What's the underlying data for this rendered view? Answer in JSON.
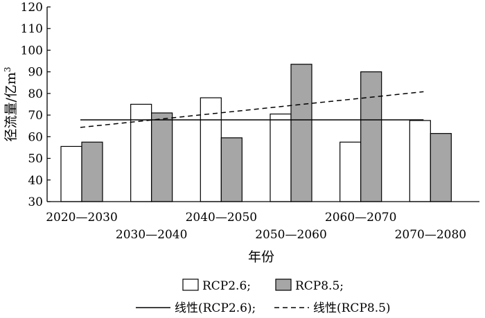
{
  "chart_data": {
    "type": "bar",
    "categories": [
      "2020—2030",
      "2030—2040",
      "2040—2050",
      "2050—2060",
      "2060—2070",
      "2070—2080"
    ],
    "series": [
      {
        "name": "RCP2.6",
        "values": [
          55.5,
          75,
          78,
          70.5,
          57.5,
          67.5
        ],
        "color": "#ffffff"
      },
      {
        "name": "RCP8.5",
        "values": [
          57.5,
          71,
          59.5,
          93.5,
          90,
          61.5
        ],
        "color": "#a6a6a6"
      }
    ],
    "trendlines": [
      {
        "name": "线性(RCP2.6)",
        "style": "solid",
        "start": 67.8,
        "end": 67.8
      },
      {
        "name": "线性(RCP8.5)",
        "style": "dashed",
        "start": 64.3,
        "end": 80.8
      }
    ],
    "ylabel": "径流量/亿m",
    "ylabel_sup": "3",
    "xlabel": "年份",
    "ylim": [
      30,
      120
    ],
    "yticks": [
      30,
      40,
      50,
      60,
      70,
      80,
      90,
      100,
      110,
      120
    ],
    "grid": false,
    "legend": {
      "placement": "bottom",
      "row1": [
        "RCP2.6;",
        "RCP8.5;"
      ],
      "row2": [
        "线性(RCP2.6);",
        "线性(RCP8.5)"
      ]
    }
  }
}
